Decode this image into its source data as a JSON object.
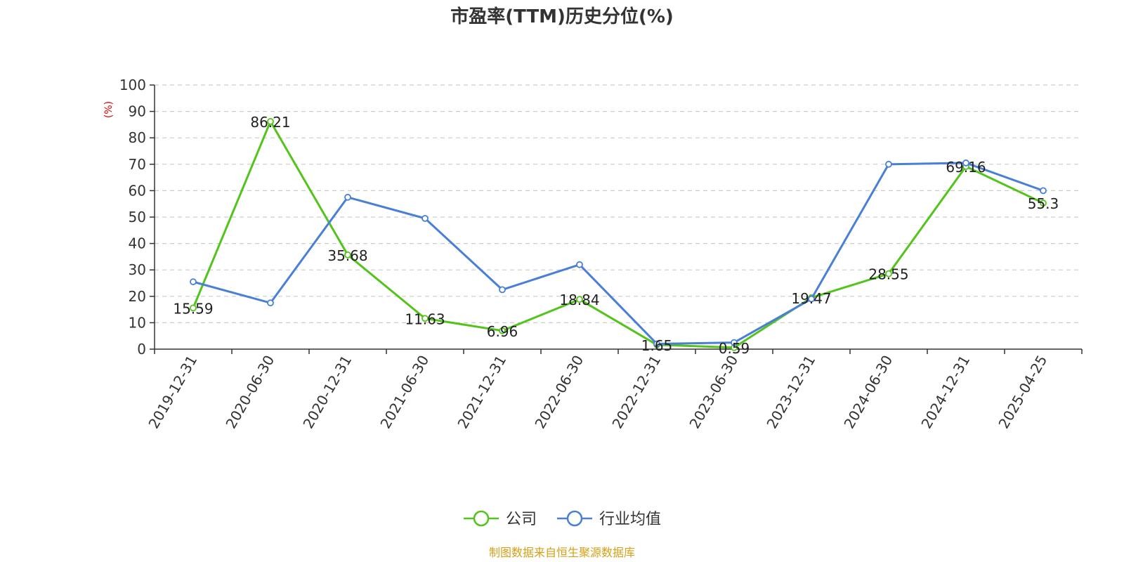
{
  "chart_data": {
    "type": "line",
    "title": "市盈率(TTM)历史分位(%)",
    "ylabel": "(%)",
    "ylim": [
      0,
      100
    ],
    "yticks": [
      0,
      10,
      20,
      30,
      40,
      50,
      60,
      70,
      80,
      90,
      100
    ],
    "categories": [
      "2019-12-31",
      "2020-06-30",
      "2020-12-31",
      "2021-06-30",
      "2021-12-31",
      "2022-06-30",
      "2022-12-31",
      "2023-06-30",
      "2023-12-31",
      "2024-06-30",
      "2024-12-31",
      "2025-04-25"
    ],
    "series": [
      {
        "name": "公司",
        "color": "#52c41a",
        "values": [
          15.59,
          86.21,
          35.68,
          11.63,
          6.96,
          18.84,
          1.65,
          0.59,
          19.47,
          28.55,
          69.16,
          55.3
        ],
        "labels": [
          "15.59",
          "86.21",
          "35.68",
          "11.63",
          "6.96",
          "18.84",
          "1.65",
          "0.59",
          "19.47",
          "28.55",
          "69.16",
          "55.3"
        ]
      },
      {
        "name": "行业均值",
        "color": "#4a7fd8",
        "values": [
          25.5,
          17.5,
          57.5,
          49.5,
          22.5,
          32,
          2,
          2.5,
          19,
          70,
          70.5,
          60
        ]
      }
    ],
    "grid": true,
    "legend_position": "bottom-center",
    "source": "制图数据来自恒生聚源数据库"
  }
}
